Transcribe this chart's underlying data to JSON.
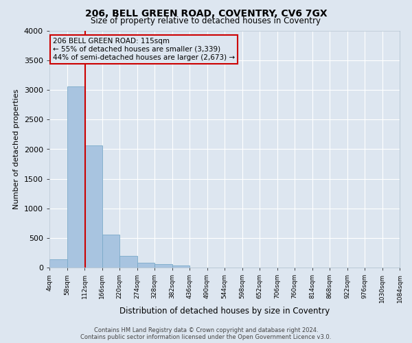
{
  "title": "206, BELL GREEN ROAD, COVENTRY, CV6 7GX",
  "subtitle": "Size of property relative to detached houses in Coventry",
  "xlabel": "Distribution of detached houses by size in Coventry",
  "ylabel": "Number of detached properties",
  "footer_line1": "Contains HM Land Registry data © Crown copyright and database right 2024.",
  "footer_line2": "Contains public sector information licensed under the Open Government Licence v3.0.",
  "bar_values": [
    140,
    3060,
    2060,
    560,
    200,
    80,
    55,
    40,
    0,
    0,
    0,
    0,
    0,
    0,
    0,
    0,
    0,
    0,
    0,
    0
  ],
  "bin_edges": [
    4,
    58,
    112,
    166,
    220,
    274,
    328,
    382,
    436,
    490,
    544,
    598,
    652,
    706,
    760,
    814,
    868,
    922,
    976,
    1030,
    1084
  ],
  "tick_labels": [
    "4sqm",
    "58sqm",
    "112sqm",
    "166sqm",
    "220sqm",
    "274sqm",
    "328sqm",
    "382sqm",
    "436sqm",
    "490sqm",
    "544sqm",
    "598sqm",
    "652sqm",
    "706sqm",
    "760sqm",
    "814sqm",
    "868sqm",
    "922sqm",
    "976sqm",
    "1030sqm",
    "1084sqm"
  ],
  "ylim": [
    0,
    4000
  ],
  "yticks": [
    0,
    500,
    1000,
    1500,
    2000,
    2500,
    3000,
    3500,
    4000
  ],
  "bar_color": "#a8c4e0",
  "bar_edgecolor": "#7aaac8",
  "vline_x": 115,
  "vline_color": "#cc0000",
  "annotation_text": "206 BELL GREEN ROAD: 115sqm\n← 55% of detached houses are smaller (3,339)\n44% of semi-detached houses are larger (2,673) →",
  "annotation_box_color": "#cc0000",
  "background_color": "#dde6f0",
  "grid_color": "#ffffff"
}
